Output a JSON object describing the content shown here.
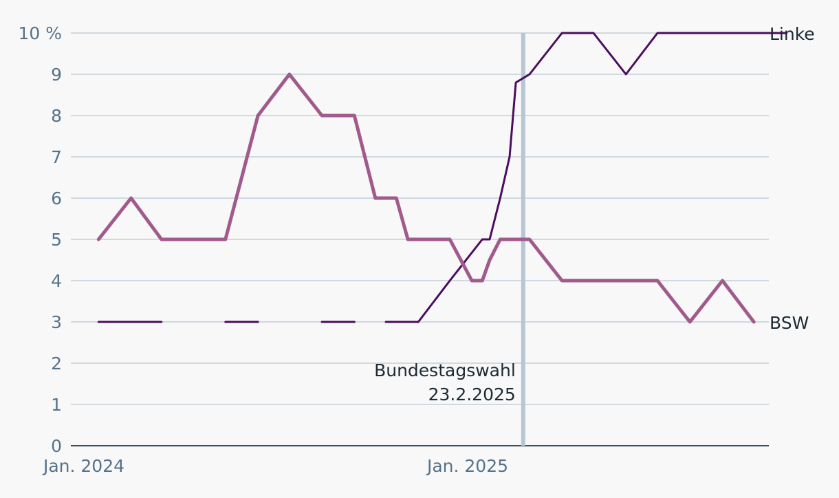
{
  "chart_data": {
    "type": "line",
    "title": "",
    "xlabel": "",
    "ylabel": "",
    "ylim": [
      0,
      10
    ],
    "y_ticks": [
      "0",
      "1",
      "2",
      "3",
      "4",
      "5",
      "6",
      "7",
      "8",
      "9",
      "10 %"
    ],
    "x_ticks": [
      {
        "date": "2024-01-01",
        "label": "Jan. 2024"
      },
      {
        "date": "2025-01-01",
        "label": "Jan. 2025"
      }
    ],
    "grid": true,
    "legend": "direct labels at line ends",
    "series": [
      {
        "name": "Linke",
        "color": "#4b0d5e",
        "segments": [
          [
            [
              "2024-01-15",
              3
            ],
            [
              "2024-03-15",
              3
            ]
          ],
          [
            [
              "2024-05-15",
              3
            ],
            [
              "2024-06-15",
              3
            ]
          ],
          [
            [
              "2024-08-15",
              3
            ],
            [
              "2024-09-15",
              3
            ]
          ],
          [
            [
              "2024-10-15",
              3
            ],
            [
              "2024-11-15",
              3
            ],
            [
              "2024-12-15",
              4
            ],
            [
              "2025-01-15",
              5
            ],
            [
              "2025-01-22",
              5
            ],
            [
              "2025-02-01",
              6
            ],
            [
              "2025-02-10",
              7
            ],
            [
              "2025-02-16",
              8.8
            ],
            [
              "2025-03-01",
              9
            ],
            [
              "2025-04-01",
              10
            ],
            [
              "2025-05-01",
              10
            ],
            [
              "2025-06-01",
              9
            ],
            [
              "2025-07-01",
              10
            ],
            [
              "2025-08-01",
              10
            ],
            [
              "2025-09-01",
              10
            ],
            [
              "2025-10-01",
              10
            ],
            [
              "2025-11-01",
              10
            ]
          ]
        ]
      },
      {
        "name": "BSW",
        "color": "#a05a8b",
        "segments": [
          [
            [
              "2024-01-15",
              5
            ],
            [
              "2024-02-15",
              6
            ],
            [
              "2024-03-15",
              5
            ],
            [
              "2024-04-15",
              5
            ],
            [
              "2024-05-15",
              5
            ],
            [
              "2024-06-15",
              8
            ],
            [
              "2024-07-15",
              9
            ],
            [
              "2024-08-15",
              8
            ],
            [
              "2024-09-15",
              8
            ],
            [
              "2024-10-05",
              6
            ],
            [
              "2024-10-25",
              6
            ],
            [
              "2024-11-05",
              5
            ],
            [
              "2024-12-15",
              5
            ],
            [
              "2025-01-05",
              4
            ],
            [
              "2025-01-15",
              4
            ],
            [
              "2025-01-22",
              4.5
            ],
            [
              "2025-02-01",
              5
            ],
            [
              "2025-02-16",
              5
            ],
            [
              "2025-03-01",
              5
            ],
            [
              "2025-04-01",
              4
            ],
            [
              "2025-05-01",
              4
            ],
            [
              "2025-06-01",
              4
            ],
            [
              "2025-07-01",
              4
            ],
            [
              "2025-08-01",
              3
            ],
            [
              "2025-09-01",
              4
            ],
            [
              "2025-10-01",
              3
            ]
          ]
        ]
      }
    ],
    "annotations": [
      {
        "date": "2025-02-23",
        "line1": "Bundestagswahl",
        "line2": "23.2.2025"
      }
    ]
  }
}
